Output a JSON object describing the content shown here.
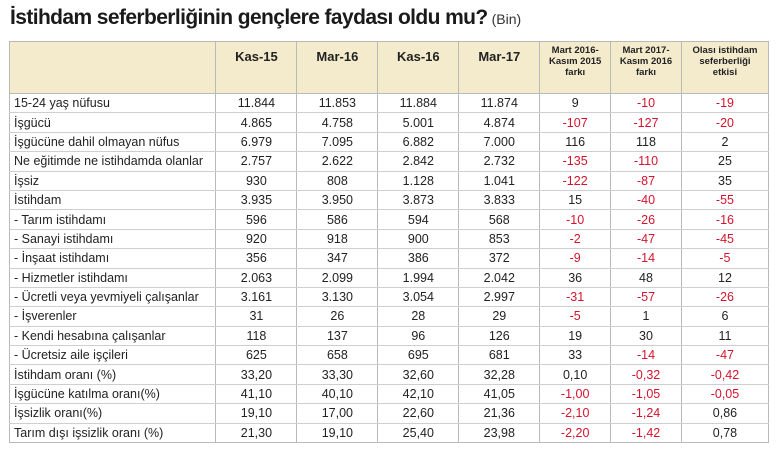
{
  "title": "İstihdam seferberliğinin gençlere faydası oldu mu?",
  "subtitle": "(Bin)",
  "table": {
    "headers": [
      [],
      [
        "Kas-15"
      ],
      [
        "Mar-16"
      ],
      [
        "Kas-16"
      ],
      [
        "Mar-17"
      ],
      [
        "Mart 2016-",
        "Kasım 2015",
        "farkı"
      ],
      [
        "Mart 2017-",
        "Kasım 2016",
        "farkı"
      ],
      [
        "Olası istihdam",
        "seferberliği",
        "etkisi"
      ]
    ],
    "rows": [
      [
        "15-24 yaş nüfusu",
        "11.844",
        "11.853",
        "11.884",
        "11.874",
        "9",
        "-10",
        "-19"
      ],
      [
        "İşgücü",
        "4.865",
        "4.758",
        "5.001",
        "4.874",
        "-107",
        "-127",
        "-20"
      ],
      [
        "İşgücüne dahil olmayan nüfus",
        "6.979",
        "7.095",
        "6.882",
        "7.000",
        "116",
        "118",
        "2"
      ],
      [
        "Ne eğitimde ne istihdamda olanlar",
        "2.757",
        "2.622",
        "2.842",
        "2.732",
        "-135",
        "-110",
        "25"
      ],
      [
        "İşsiz",
        "930",
        "808",
        "1.128",
        "1.041",
        "-122",
        "-87",
        "35"
      ],
      [
        "İstihdam",
        "3.935",
        "3.950",
        "3.873",
        "3.833",
        "15",
        "-40",
        "-55"
      ],
      [
        "- Tarım istihdamı",
        "596",
        "586",
        "594",
        "568",
        "-10",
        "-26",
        "-16"
      ],
      [
        "- Sanayi istihdamı",
        "920",
        "918",
        "900",
        "853",
        "-2",
        "-47",
        "-45"
      ],
      [
        "- İnşaat istihdamı",
        "356",
        "347",
        "386",
        "372",
        "-9",
        "-14",
        "-5"
      ],
      [
        "- Hizmetler istihdamı",
        "2.063",
        "2.099",
        "1.994",
        "2.042",
        "36",
        "48",
        "12"
      ],
      [
        "- Ücretli veya yevmiyeli çalışanlar",
        "3.161",
        "3.130",
        "3.054",
        "2.997",
        "-31",
        "-57",
        "-26"
      ],
      [
        "- İşverenler",
        "31",
        "26",
        "28",
        "29",
        "-5",
        "1",
        "6"
      ],
      [
        "- Kendi hesabına çalışanlar",
        "118",
        "137",
        "96",
        "126",
        "19",
        "30",
        "11"
      ],
      [
        "- Ücretsiz aile işçileri",
        "625",
        "658",
        "695",
        "681",
        "33",
        "-14",
        "-47"
      ],
      [
        "İstihdam oranı (%)",
        "33,20",
        "33,30",
        "32,60",
        "32,28",
        "0,10",
        "-0,32",
        "-0,42"
      ],
      [
        "İşgücüne katılma oranı(%)",
        "41,10",
        "40,10",
        "42,10",
        "41,05",
        "-1,00",
        "-1,05",
        "-0,05"
      ],
      [
        "İşsizlik oranı(%)",
        "19,10",
        "17,00",
        "22,60",
        "21,36",
        "-2,10",
        "-1,24",
        "0,86"
      ],
      [
        "Tarım dışı işsizlik oranı (%)",
        "21,30",
        "19,10",
        "25,40",
        "23,98",
        "-2,20",
        "-1,42",
        "0,78"
      ]
    ]
  }
}
